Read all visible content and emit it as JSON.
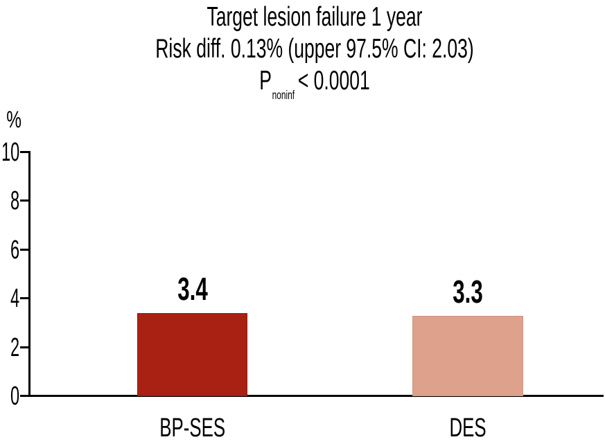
{
  "chart_data": {
    "type": "bar",
    "title": "Target lesion failure 1 year",
    "subtitle": "Risk diff. 0.13% (upper 97.5% CI: 2.03)",
    "p_value_line": {
      "symbol": "P",
      "subscript": "noninf",
      "comparison": "< 0.0001"
    },
    "categories": [
      "BP-SES",
      "DES"
    ],
    "values": [
      3.4,
      3.3
    ],
    "value_labels": [
      "3.4",
      "3.3"
    ],
    "bar_colors": [
      "#a82112",
      "#dda18c"
    ],
    "bar_edge_colors": [
      "#8f1d10",
      "#cf9883"
    ],
    "ylabel": "%",
    "yticks": [
      0,
      2,
      4,
      6,
      8,
      10
    ],
    "ylim": [
      0,
      10
    ],
    "grid": false,
    "legend": "none",
    "axis_color": "#000000",
    "text_color": "#000000"
  }
}
